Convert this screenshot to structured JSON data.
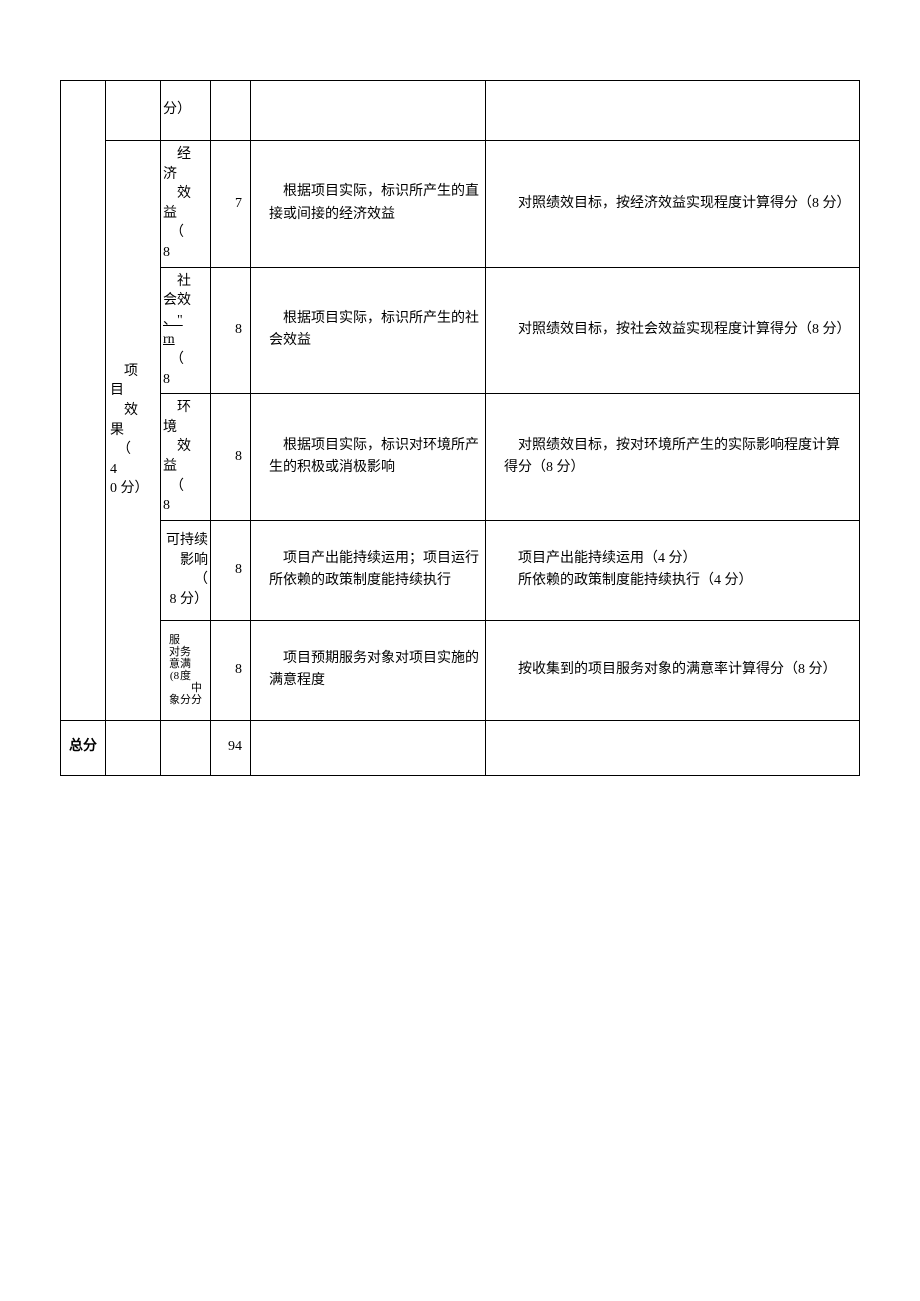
{
  "rows": [
    {
      "col3": "分）",
      "col4": "",
      "col5": "",
      "col6": ""
    },
    {
      "col3_lines": [
        "　经",
        "济",
        "　效",
        "益",
        "　（",
        "8"
      ],
      "col4": "7",
      "col5": "　根据项目实际，标识所产生的直接或间接的经济效益",
      "col6": "　对照绩效目标，按经济效益实现程度计算得分（8 分）"
    },
    {
      "col3_lines": [
        "　社",
        "会效",
        "、\"",
        "rn",
        "　（",
        "8"
      ],
      "col3_underline_idx": [
        2,
        3
      ],
      "col4": "8",
      "col5": "　根据项目实际，标识所产生的社会效益",
      "col6": "　对照绩效目标，按社会效益实现程度计算得分（8 分）"
    },
    {
      "col3_lines": [
        "　环",
        "境",
        "　效",
        "益",
        "　（",
        "8"
      ],
      "col4": "8",
      "col5": "　根据项目实际，标识对环境所产生的积极或消极影响",
      "col6": "　对照绩效目标，按对环境所产生的实际影响程度计算得分（8 分）"
    },
    {
      "col3_lines": [
        "",
        "可持续",
        "影响",
        "（",
        "8 分）"
      ],
      "col3_align": "right",
      "col4": "8",
      "col5": "　项目产出能持续运用；项目运行所依赖的政策制度能持续执行",
      "col6": "　项目产出能持续运用（4 分）\n　所依赖的政策制度能持续执行（4 分）"
    },
    {
      "col3_compact": true,
      "col4": "8",
      "col5": "　项目预期服务对象对项目实施的满意程度",
      "col6": "　按收集到的项目服务对象的满意率计算得分（8 分）"
    }
  ],
  "col2_text": "　项\n目\n　效\n果\n　（\n4\n 0 分）",
  "total_label": "总分",
  "total_value": "94",
  "service_compact": {
    "left": [
      "服",
      "对",
      "意",
      "(8",
      "",
      "象"
    ],
    "right": [
      "",
      "务",
      "满",
      "度",
      "",
      "分"
    ]
  },
  "colors": {
    "border": "#000000",
    "background": "#ffffff",
    "text": "#000000"
  }
}
